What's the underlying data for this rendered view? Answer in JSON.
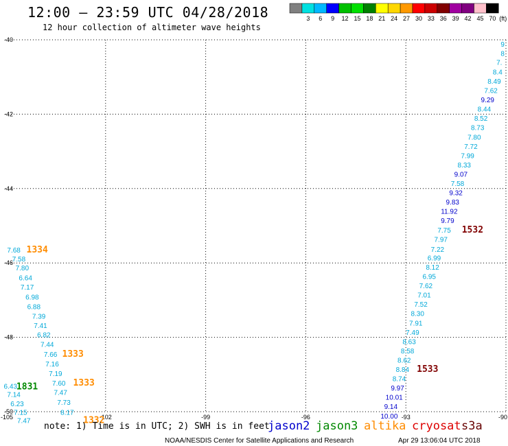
{
  "header": {
    "title": "12:00 – 23:59 UTC 04/28/2018",
    "subtitle": "12 hour collection of altimeter wave heights",
    "unit": "(ft)"
  },
  "colorbar": [
    {
      "label": "",
      "color": "#808080"
    },
    {
      "label": "3",
      "color": "#00e0e0"
    },
    {
      "label": "6",
      "color": "#00b8ff"
    },
    {
      "label": "9",
      "color": "#0000ff"
    },
    {
      "label": "12",
      "color": "#00c000"
    },
    {
      "label": "15",
      "color": "#00e000"
    },
    {
      "label": "18",
      "color": "#008000"
    },
    {
      "label": "21",
      "color": "#ffff00"
    },
    {
      "label": "24",
      "color": "#ffd700"
    },
    {
      "label": "27",
      "color": "#ff9900"
    },
    {
      "label": "30",
      "color": "#ff0000"
    },
    {
      "label": "33",
      "color": "#cc0000"
    },
    {
      "label": "36",
      "color": "#800000"
    },
    {
      "label": "39",
      "color": "#a000a0"
    },
    {
      "label": "42",
      "color": "#800080"
    },
    {
      "label": "45",
      "color": "#ffc0cb"
    },
    {
      "label": "70",
      "color": "#000000"
    }
  ],
  "footer": {
    "note": "note: 1) Time is in UTC; 2) SWH is in feet",
    "credit": "NOAA/NESDIS Center for Satellite Applications and Research",
    "timestamp": "Apr 29 13:06:04 UTC 2018",
    "satellites": [
      {
        "name": "jason2",
        "color": "#0000cc"
      },
      {
        "name": "jason3",
        "color": "#008800"
      },
      {
        "name": "altika",
        "color": "#ff8c00"
      },
      {
        "name": "cryosat",
        "color": "#dd0000"
      },
      {
        "name": "s3a",
        "color": "#660000"
      }
    ]
  },
  "chart_data": {
    "type": "scatter",
    "title": "12:00 – 23:59 UTC 04/28/2018",
    "subtitle": "12 hour collection of altimeter wave heights",
    "xlim": [
      -105,
      -90
    ],
    "ylim": [
      -50,
      -40
    ],
    "x_ticks": [
      -105,
      -102,
      -99,
      -96,
      -93,
      -90
    ],
    "y_ticks": [
      -40,
      -42,
      -44,
      -46,
      -48,
      -50
    ],
    "x_tick_labels": [
      "-105",
      "-102",
      "-99",
      "-96",
      "-93",
      "-90"
    ],
    "y_tick_labels": [
      "-40",
      "-42",
      "-44",
      "-46",
      "-48",
      "-50"
    ],
    "grid": true,
    "colors": {
      "cyan": "#00a8d8",
      "blue": "#0000cc",
      "green": "#008800",
      "orange": "#ff8c00",
      "maroon": "#800000"
    },
    "labels": [
      {
        "lon": -104.75,
        "lat": -45.72,
        "text": "7.68",
        "color": "cyan"
      },
      {
        "lon": -104.6,
        "lat": -45.96,
        "text": "7.58",
        "color": "cyan"
      },
      {
        "lon": -104.5,
        "lat": -46.2,
        "text": "7.80",
        "color": "cyan"
      },
      {
        "lon": -104.4,
        "lat": -46.47,
        "text": "6.64",
        "color": "cyan"
      },
      {
        "lon": -104.35,
        "lat": -46.72,
        "text": "7.17",
        "color": "cyan"
      },
      {
        "lon": -104.2,
        "lat": -46.98,
        "text": "6.98",
        "color": "cyan"
      },
      {
        "lon": -104.15,
        "lat": -47.24,
        "text": "6.88",
        "color": "cyan"
      },
      {
        "lon": -104.0,
        "lat": -47.5,
        "text": "7.39",
        "color": "cyan"
      },
      {
        "lon": -103.95,
        "lat": -47.75,
        "text": "7.41",
        "color": "cyan"
      },
      {
        "lon": -103.85,
        "lat": -48.0,
        "text": "6.82",
        "color": "cyan"
      },
      {
        "lon": -103.75,
        "lat": -48.26,
        "text": "7.44",
        "color": "cyan"
      },
      {
        "lon": -103.65,
        "lat": -48.52,
        "text": "7.66",
        "color": "cyan"
      },
      {
        "lon": -103.6,
        "lat": -48.78,
        "text": "7.16",
        "color": "cyan"
      },
      {
        "lon": -103.5,
        "lat": -49.04,
        "text": "7.19",
        "color": "cyan"
      },
      {
        "lon": -103.4,
        "lat": -49.3,
        "text": "7.60",
        "color": "cyan"
      },
      {
        "lon": -103.35,
        "lat": -49.55,
        "text": "7.47",
        "color": "cyan"
      },
      {
        "lon": -103.25,
        "lat": -49.82,
        "text": "7.73",
        "color": "cyan"
      },
      {
        "lon": -103.15,
        "lat": -50.08,
        "text": "8.17",
        "color": "cyan"
      },
      {
        "lon": -104.85,
        "lat": -49.38,
        "text": "6.43",
        "color": "cyan"
      },
      {
        "lon": -104.75,
        "lat": -49.6,
        "text": "7.14",
        "color": "cyan"
      },
      {
        "lon": -104.65,
        "lat": -49.85,
        "text": "6.23",
        "color": "cyan"
      },
      {
        "lon": -104.55,
        "lat": -50.08,
        "text": "7.15",
        "color": "cyan"
      },
      {
        "lon": -104.45,
        "lat": -50.3,
        "text": "7.47",
        "color": "cyan"
      },
      {
        "lon": -104.05,
        "lat": -45.72,
        "text": "1334",
        "color": "orange",
        "bold": true
      },
      {
        "lon": -102.98,
        "lat": -48.52,
        "text": "1333",
        "color": "orange",
        "bold": true
      },
      {
        "lon": -102.65,
        "lat": -49.3,
        "text": "1333",
        "color": "orange",
        "bold": true
      },
      {
        "lon": -102.35,
        "lat": -50.3,
        "text": "1332",
        "color": "orange",
        "bold": true
      },
      {
        "lon": -104.35,
        "lat": -49.4,
        "text": "1831",
        "color": "green",
        "bold": true
      },
      {
        "lon": -90.1,
        "lat": -40.18,
        "text": "9",
        "color": "cyan"
      },
      {
        "lon": -90.1,
        "lat": -40.43,
        "text": "8",
        "color": "cyan"
      },
      {
        "lon": -90.2,
        "lat": -40.67,
        "text": "7.",
        "color": "cyan"
      },
      {
        "lon": -90.25,
        "lat": -40.93,
        "text": "8.4",
        "color": "cyan"
      },
      {
        "lon": -90.35,
        "lat": -41.18,
        "text": "8.49",
        "color": "cyan"
      },
      {
        "lon": -90.45,
        "lat": -41.43,
        "text": "7.62",
        "color": "cyan"
      },
      {
        "lon": -90.55,
        "lat": -41.68,
        "text": "9.29",
        "color": "blue"
      },
      {
        "lon": -90.65,
        "lat": -41.93,
        "text": "8.44",
        "color": "cyan"
      },
      {
        "lon": -90.75,
        "lat": -42.18,
        "text": "8.52",
        "color": "cyan"
      },
      {
        "lon": -90.85,
        "lat": -42.43,
        "text": "8.73",
        "color": "cyan"
      },
      {
        "lon": -90.95,
        "lat": -42.68,
        "text": "7.80",
        "color": "cyan"
      },
      {
        "lon": -91.05,
        "lat": -42.93,
        "text": "7.72",
        "color": "cyan"
      },
      {
        "lon": -91.15,
        "lat": -43.18,
        "text": "7.99",
        "color": "cyan"
      },
      {
        "lon": -91.25,
        "lat": -43.43,
        "text": "8.33",
        "color": "cyan"
      },
      {
        "lon": -91.35,
        "lat": -43.68,
        "text": "9.07",
        "color": "blue"
      },
      {
        "lon": -91.45,
        "lat": -43.93,
        "text": "7.58",
        "color": "cyan"
      },
      {
        "lon": -91.5,
        "lat": -44.18,
        "text": "9.32",
        "color": "blue"
      },
      {
        "lon": -91.6,
        "lat": -44.43,
        "text": "9.83",
        "color": "blue"
      },
      {
        "lon": -91.7,
        "lat": -44.68,
        "text": "11.92",
        "color": "blue"
      },
      {
        "lon": -91.75,
        "lat": -44.93,
        "text": "9.79",
        "color": "blue"
      },
      {
        "lon": -91.85,
        "lat": -45.18,
        "text": "7.75",
        "color": "cyan"
      },
      {
        "lon": -91.95,
        "lat": -45.43,
        "text": "7.97",
        "color": "cyan"
      },
      {
        "lon": -92.05,
        "lat": -45.7,
        "text": "7.22",
        "color": "cyan"
      },
      {
        "lon": -92.15,
        "lat": -45.93,
        "text": "6.99",
        "color": "cyan"
      },
      {
        "lon": -92.2,
        "lat": -46.18,
        "text": "8.12",
        "color": "cyan"
      },
      {
        "lon": -92.3,
        "lat": -46.43,
        "text": "6.95",
        "color": "cyan"
      },
      {
        "lon": -92.4,
        "lat": -46.68,
        "text": "7.62",
        "color": "cyan"
      },
      {
        "lon": -92.45,
        "lat": -46.93,
        "text": "7.01",
        "color": "cyan"
      },
      {
        "lon": -92.55,
        "lat": -47.18,
        "text": "7.52",
        "color": "cyan"
      },
      {
        "lon": -92.65,
        "lat": -47.43,
        "text": "8.30",
        "color": "cyan"
      },
      {
        "lon": -92.7,
        "lat": -47.68,
        "text": "7.91",
        "color": "cyan"
      },
      {
        "lon": -92.8,
        "lat": -47.93,
        "text": "7.49",
        "color": "cyan"
      },
      {
        "lon": -92.9,
        "lat": -48.18,
        "text": "8.63",
        "color": "cyan"
      },
      {
        "lon": -92.95,
        "lat": -48.43,
        "text": "8.58",
        "color": "cyan"
      },
      {
        "lon": -93.05,
        "lat": -48.68,
        "text": "8.62",
        "color": "cyan"
      },
      {
        "lon": -93.1,
        "lat": -48.93,
        "text": "8.84",
        "color": "cyan"
      },
      {
        "lon": -93.2,
        "lat": -49.18,
        "text": "8.74",
        "color": "cyan"
      },
      {
        "lon": -93.25,
        "lat": -49.43,
        "text": "9.97",
        "color": "blue"
      },
      {
        "lon": -93.35,
        "lat": -49.68,
        "text": "10.01",
        "color": "blue"
      },
      {
        "lon": -93.45,
        "lat": -49.93,
        "text": "9.14",
        "color": "blue"
      },
      {
        "lon": -93.5,
        "lat": -50.18,
        "text": "10.00",
        "color": "blue"
      },
      {
        "lon": -91.0,
        "lat": -45.18,
        "text": "1532",
        "color": "maroon",
        "bold": true
      },
      {
        "lon": -92.35,
        "lat": -48.93,
        "text": "1533",
        "color": "maroon",
        "bold": true
      }
    ]
  }
}
